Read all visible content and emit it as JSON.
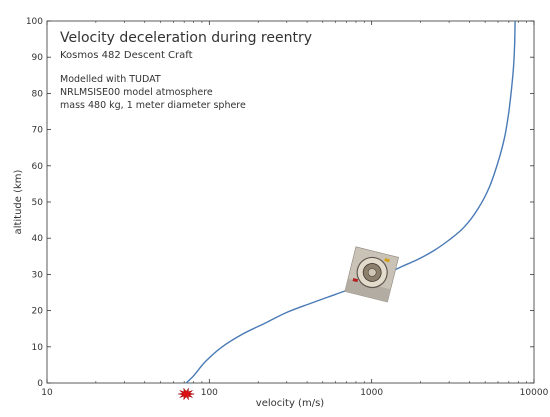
{
  "chart_data": {
    "type": "line",
    "title": "Velocity deceleration during reentry",
    "subtitle": "Kosmos 482 Descent Craft",
    "annotations": [
      "Modelled with TUDAT",
      "NRLMSISE00 model atmosphere",
      "mass 480 kg, 1 meter diameter sphere"
    ],
    "xlabel": "velocity (m/s)",
    "ylabel": "altitude (km)",
    "xscale": "log",
    "xlim": [
      10,
      10000
    ],
    "ylim": [
      0,
      100
    ],
    "xticks": [
      10,
      100,
      1000,
      10000
    ],
    "xtick_labels": [
      "10",
      "100",
      "1000",
      "10000"
    ],
    "yticks": [
      0,
      10,
      20,
      30,
      40,
      50,
      60,
      70,
      80,
      90,
      100
    ],
    "ytick_labels": [
      "0",
      "10",
      "20",
      "30",
      "40",
      "50",
      "60",
      "70",
      "80",
      "90",
      "100"
    ],
    "grid": false,
    "series": [
      {
        "color": "#4a7ab5",
        "x": [
          72,
          80,
          95,
          120,
          160,
          220,
          300,
          420,
          600,
          850,
          1150,
          1500,
          1900,
          2400,
          3000,
          3700,
          4500,
          5300,
          6000,
          6600,
          7000,
          7300,
          7500,
          7600,
          7650
        ],
        "y": [
          0,
          2,
          6,
          10,
          13.5,
          16.5,
          19.5,
          22,
          24.5,
          27,
          29.5,
          32,
          34,
          36.5,
          39.5,
          43,
          48,
          54,
          61,
          68,
          75,
          82,
          88,
          94,
          100
        ]
      }
    ],
    "markers": [
      {
        "name": "impact-burst",
        "x": 72,
        "y": 0,
        "color": "#dd1111"
      },
      {
        "name": "descent-craft-image",
        "x": 1000,
        "y": 30
      }
    ]
  }
}
